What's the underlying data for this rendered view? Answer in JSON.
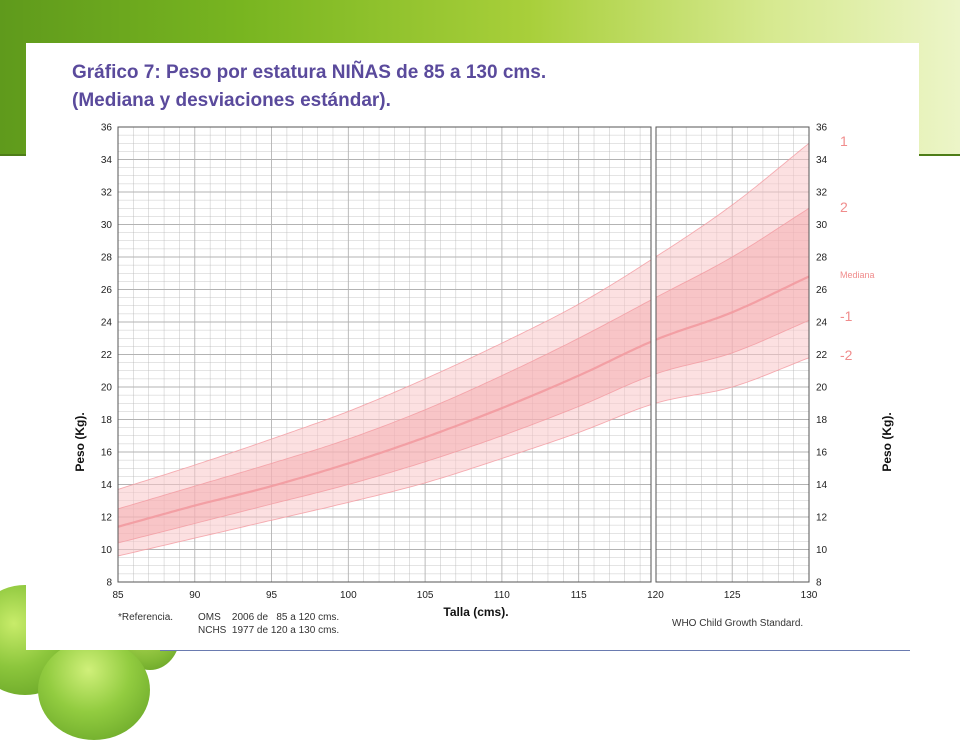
{
  "slide": {
    "title_line1": "Gráfico 7: Peso por estatura NIÑAS de 85 a 130 cms.",
    "title_line2": "(Mediana y desviaciones estándar)."
  },
  "colors": {
    "band_outer": "#f9c7c9",
    "band_inner": "#f5a4a8",
    "curve": "#f29aa0",
    "grid": "#b3b3b3",
    "label": "#f08c8c",
    "title": "#5a4a9c"
  },
  "chart_data": {
    "type": "line",
    "xlabel": "Talla (cms).",
    "ylabel": "Peso (Kg).",
    "xlim": [
      85,
      130
    ],
    "ylim": [
      8,
      36
    ],
    "x_ticks": [
      85,
      90,
      95,
      100,
      105,
      110,
      115,
      120,
      125,
      130
    ],
    "y_ticks": [
      8,
      10,
      12,
      14,
      16,
      18,
      20,
      22,
      24,
      26,
      28,
      30,
      32,
      34,
      36
    ],
    "grid": true,
    "x": [
      85,
      90,
      95,
      100,
      105,
      110,
      115,
      120,
      125,
      130
    ],
    "series": [
      {
        "name": "1",
        "values": [
          13.7,
          15.2,
          16.8,
          18.5,
          20.5,
          22.7,
          25.1,
          28.0,
          31.2,
          35.0
        ]
      },
      {
        "name": "2",
        "values": [
          12.5,
          13.9,
          15.3,
          16.8,
          18.6,
          20.7,
          23.0,
          25.5,
          28.0,
          31.0
        ]
      },
      {
        "name": "Mediana",
        "values": [
          11.4,
          12.7,
          13.9,
          15.3,
          16.9,
          18.7,
          20.7,
          22.9,
          24.6,
          26.8
        ]
      },
      {
        "name": "-1",
        "values": [
          10.4,
          11.6,
          12.8,
          14.0,
          15.4,
          17.0,
          18.8,
          20.8,
          22.1,
          24.1
        ]
      },
      {
        "name": "-2",
        "values": [
          9.6,
          10.7,
          11.8,
          12.9,
          14.1,
          15.6,
          17.2,
          19.0,
          20.0,
          21.8
        ]
      }
    ],
    "annotations": {
      "reference": "*Referencia.",
      "source_line1": "OMS    2006 de   85 a 120 cms.",
      "source_line2": "NCHS  1977 de 120 a 130 cms.",
      "standard": "WHO Child Growth Standard."
    }
  }
}
